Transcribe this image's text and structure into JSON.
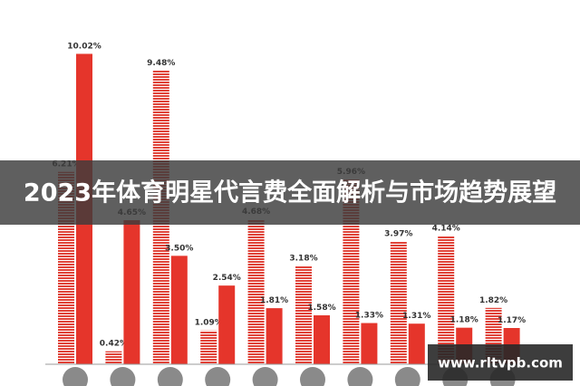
{
  "chart_data": {
    "type": "bar",
    "title": "2023年体育明星代言费全面解析与市场趋势展望",
    "watermark": "www.rltvpb.com",
    "categories": [
      null,
      null,
      null,
      null,
      null,
      null,
      null,
      null,
      null,
      null
    ],
    "ylim": [
      0,
      11.7
    ],
    "series": [
      {
        "color": "#e0443a",
        "pattern": "striped",
        "values": [
          6.21,
          0.42,
          9.48,
          1.09,
          4.68,
          3.18,
          5.96,
          3.97,
          4.14,
          1.82
        ],
        "value_labels": [
          "6.21%",
          "0.42%",
          "9.48%",
          "1.09%",
          "4.68%",
          "3.18%",
          "5.96%",
          "3.97%",
          "4.14%",
          "1.82%"
        ]
      },
      {
        "color": "#e5352b",
        "pattern": "solid",
        "values": [
          10.02,
          4.65,
          3.5,
          2.54,
          1.81,
          1.58,
          1.33,
          1.31,
          1.18,
          1.17
        ],
        "value_labels": [
          "10.02%",
          "4.65%",
          "3.50%",
          "2.54%",
          "1.81%",
          "1.58%",
          "1.33%",
          "1.31%",
          "1.18%",
          "1.17%"
        ]
      }
    ]
  }
}
